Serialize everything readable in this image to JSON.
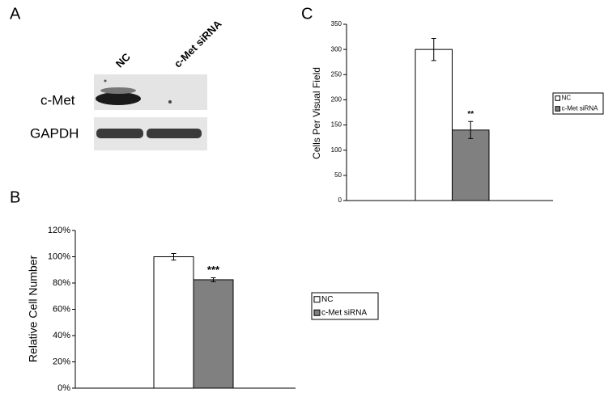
{
  "panels": {
    "a": "A",
    "b": "B",
    "c": "C"
  },
  "blot": {
    "lanes": [
      "NC",
      "c-Met siRNA"
    ],
    "bands": [
      "c-Met",
      "GAPDH"
    ]
  },
  "chart_data": [
    {
      "type": "bar",
      "y_label": "Relative Cell Number",
      "categories": [
        null
      ],
      "ylim": [
        0,
        120
      ],
      "yticks": [
        {
          "value": 0,
          "label": "0%"
        },
        {
          "value": 20,
          "label": "20%"
        },
        {
          "value": 40,
          "label": "40%"
        },
        {
          "value": 60,
          "label": "60%"
        },
        {
          "value": 80,
          "label": "80%"
        },
        {
          "value": 100,
          "label": "100%"
        },
        {
          "value": 120,
          "label": "120%"
        }
      ],
      "series": [
        {
          "name": "NC",
          "color": "#ffffff",
          "values": [
            100
          ],
          "errors": [
            2.5
          ]
        },
        {
          "name": "c-Met siRNA",
          "color": "#808080",
          "values": [
            82.5
          ],
          "errors": [
            1.5
          ],
          "annotation": "***"
        }
      ]
    },
    {
      "type": "bar",
      "y_label": "Cells  Per  Visual  Field",
      "categories": [
        null
      ],
      "ylim": [
        0,
        350
      ],
      "yticks": [
        0,
        50,
        100,
        150,
        200,
        250,
        300,
        350
      ],
      "series": [
        {
          "name": "NC",
          "color": "#ffffff",
          "values": [
            300
          ],
          "errors": [
            22
          ]
        },
        {
          "name": "c-Met siRNA",
          "color": "#808080",
          "values": [
            140
          ],
          "errors": [
            17
          ],
          "annotation": "**"
        }
      ]
    }
  ]
}
